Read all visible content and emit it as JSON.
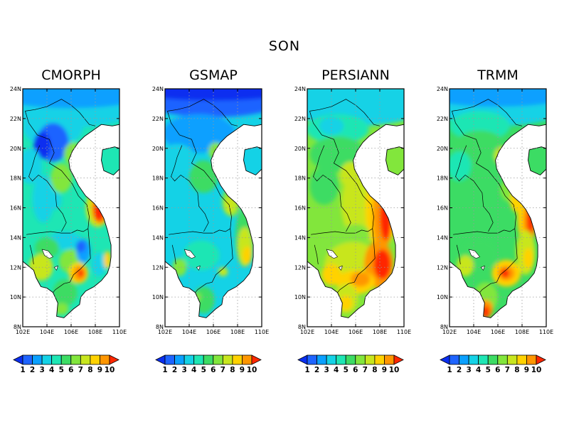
{
  "title": "SON",
  "panels": [
    {
      "name": "CMORPH",
      "scheme": "cmorph"
    },
    {
      "name": "GSMAP",
      "scheme": "gsmap"
    },
    {
      "name": "PERSIANN",
      "scheme": "persiann"
    },
    {
      "name": "TRMM",
      "scheme": "trmm"
    }
  ],
  "axes": {
    "lon_ticks": [
      "102E",
      "104E",
      "106E",
      "108E",
      "110E"
    ],
    "lat_ticks": [
      "8N",
      "10N",
      "12N",
      "14N",
      "16N",
      "18N",
      "20N",
      "22N",
      "24N"
    ]
  },
  "colorbar": {
    "labels": [
      "1",
      "2",
      "3",
      "4",
      "5",
      "6",
      "7",
      "8",
      "9",
      "10"
    ],
    "colors": [
      "#0a2ef0",
      "#1e64ff",
      "#0aa0ff",
      "#14d2e6",
      "#1ee6b4",
      "#3cdc64",
      "#82e63c",
      "#c8e61e",
      "#ffd200",
      "#ff9600",
      "#ff2800"
    ]
  }
}
